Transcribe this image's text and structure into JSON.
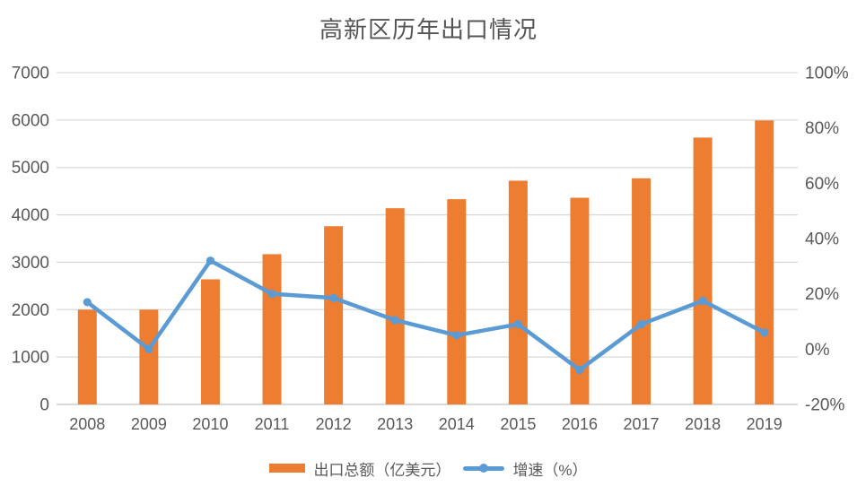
{
  "chart_data": {
    "type": "bar",
    "title": "高新区历年出口情况",
    "categories": [
      "2008",
      "2009",
      "2010",
      "2011",
      "2012",
      "2013",
      "2014",
      "2015",
      "2016",
      "2017",
      "2018",
      "2019"
    ],
    "series": [
      {
        "name": "出口总额（亿美元）",
        "type": "bar",
        "axis": "left",
        "color": "#ED7D31",
        "values": [
          2000,
          2000,
          2640,
          3170,
          3760,
          4140,
          4330,
          4720,
          4360,
          4770,
          5630,
          5990
        ]
      },
      {
        "name": "增速（%）",
        "type": "line",
        "axis": "right",
        "color": "#5B9BD5",
        "values": [
          17,
          0,
          32,
          20,
          18.5,
          10.5,
          5,
          9,
          -7.5,
          9,
          17.5,
          6
        ]
      }
    ],
    "left_axis": {
      "min": 0,
      "max": 7000,
      "step": 1000,
      "tick_labels": [
        "0",
        "1000",
        "2000",
        "3000",
        "4000",
        "5000",
        "6000",
        "7000"
      ]
    },
    "right_axis": {
      "min": -20,
      "max": 100,
      "step": 20,
      "tick_labels": [
        "-20%",
        "0%",
        "20%",
        "40%",
        "60%",
        "80%",
        "100%"
      ]
    },
    "grid": true,
    "legend_position": "bottom",
    "background_color": "#FFFFFF",
    "text_color": "#595959",
    "gridline_color": "#D9D9D9"
  }
}
